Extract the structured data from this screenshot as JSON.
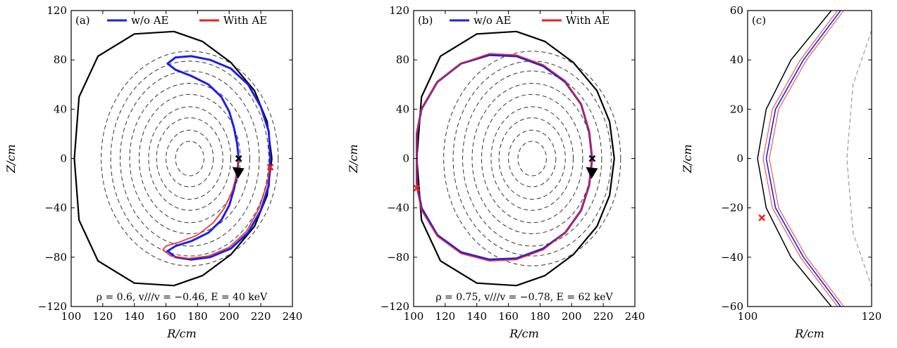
{
  "colors": {
    "without_ae": "#1f1fe6",
    "with_ae": "#ee2222",
    "boundary": "#000000",
    "flux_surface": "#333333",
    "flux_surface_c": "#999999"
  },
  "legend": {
    "entries": [
      "w/o AE",
      "With AE"
    ]
  },
  "chart_data": [
    {
      "panel": "(a)",
      "type": "line",
      "xlabel": "R/cm",
      "ylabel": "Z/cm",
      "xlim": [
        100,
        240
      ],
      "ylim": [
        -120,
        120
      ],
      "xticks": [
        "100",
        "120",
        "140",
        "160",
        "180",
        "200",
        "220",
        "240"
      ],
      "yticks": [
        "−120",
        "−80",
        "−40",
        "0",
        "40",
        "80",
        "120"
      ],
      "annotation": "ρ = 0.6,  v//∕v = −0.46,  E = 40 keV",
      "legend_position": "top",
      "start_point": {
        "R": 206,
        "Z": 0
      },
      "with_ae_end_marker": {
        "R": 226,
        "Z": -7
      },
      "series": [
        {
          "name": "w/o AE",
          "points": [
            [
              206,
              0
            ],
            [
              205,
              -12
            ],
            [
              203,
              -25
            ],
            [
              200,
              -38
            ],
            [
              195,
              -50
            ],
            [
              187,
              -60
            ],
            [
              176,
              -67
            ],
            [
              166,
              -71
            ],
            [
              161,
              -75
            ],
            [
              166,
              -80
            ],
            [
              176,
              -82
            ],
            [
              188,
              -80
            ],
            [
              201,
              -73
            ],
            [
              212,
              -60
            ],
            [
              220,
              -42
            ],
            [
              225,
              -22
            ],
            [
              226,
              0
            ],
            [
              225,
              22
            ],
            [
              220,
              42
            ],
            [
              212,
              60
            ],
            [
              201,
              73
            ],
            [
              188,
              80
            ],
            [
              176,
              83
            ],
            [
              166,
              82
            ],
            [
              161,
              77
            ],
            [
              166,
              72
            ],
            [
              176,
              67
            ],
            [
              187,
              60
            ],
            [
              195,
              50
            ],
            [
              200,
              38
            ],
            [
              203,
              25
            ],
            [
              205,
              12
            ],
            [
              206,
              0
            ]
          ]
        },
        {
          "name": "With AE",
          "points": [
            [
              206,
              0
            ],
            [
              205,
              -12
            ],
            [
              202,
              -26
            ],
            [
              197,
              -40
            ],
            [
              190,
              -52
            ],
            [
              180,
              -62
            ],
            [
              168,
              -68
            ],
            [
              160,
              -71
            ],
            [
              158,
              -74
            ],
            [
              163,
              -79
            ],
            [
              174,
              -81
            ],
            [
              187,
              -79
            ],
            [
              200,
              -72
            ],
            [
              211,
              -59
            ],
            [
              219,
              -40
            ],
            [
              224,
              -20
            ],
            [
              226,
              -7
            ]
          ]
        }
      ],
      "flux_surfaces": [
        {
          "R_center": 175,
          "Z_center": 0,
          "a": 9,
          "b": 14
        },
        {
          "R_center": 175,
          "Z_center": 0,
          "a": 15,
          "b": 23
        },
        {
          "R_center": 175,
          "Z_center": 0,
          "a": 21,
          "b": 33
        },
        {
          "R_center": 175,
          "Z_center": 0,
          "a": 26,
          "b": 42
        },
        {
          "R_center": 175,
          "Z_center": 0,
          "a": 32,
          "b": 52
        },
        {
          "R_center": 175,
          "Z_center": 0,
          "a": 38,
          "b": 61
        },
        {
          "R_center": 175,
          "Z_center": 0,
          "a": 44,
          "b": 71
        },
        {
          "R_center": 175,
          "Z_center": 0,
          "a": 50,
          "b": 79
        },
        {
          "R_center": 175,
          "Z_center": 0,
          "a": 56,
          "b": 87
        }
      ],
      "boundary": [
        [
          227,
          0
        ],
        [
          224,
          30
        ],
        [
          216,
          55
        ],
        [
          201,
          78
        ],
        [
          183,
          95
        ],
        [
          165,
          103
        ],
        [
          140,
          101
        ],
        [
          117,
          83
        ],
        [
          105,
          50
        ],
        [
          102,
          0
        ],
        [
          105,
          -50
        ],
        [
          117,
          -83
        ],
        [
          140,
          -101
        ],
        [
          165,
          -103
        ],
        [
          183,
          -95
        ],
        [
          201,
          -78
        ],
        [
          216,
          -55
        ],
        [
          224,
          -30
        ],
        [
          227,
          0
        ]
      ]
    },
    {
      "panel": "(b)",
      "type": "line",
      "xlabel": "R/cm",
      "ylabel": "Z/cm",
      "xlim": [
        100,
        240
      ],
      "ylim": [
        -120,
        120
      ],
      "xticks": [
        "100",
        "120",
        "140",
        "160",
        "180",
        "200",
        "220",
        "240"
      ],
      "yticks": [
        "−120",
        "−80",
        "−40",
        "0",
        "40",
        "80",
        "120"
      ],
      "annotation": "ρ = 0.75,  v//∕v = −0.78,  E = 62 keV",
      "legend_position": "top",
      "start_point": {
        "R": 213,
        "Z": 0
      },
      "with_ae_end_marker": {
        "R": 102,
        "Z": -24
      },
      "series": [
        {
          "name": "w/o AE",
          "points": [
            [
              213,
              0
            ],
            [
              211,
              -22
            ],
            [
              206,
              -42
            ],
            [
              196,
              -60
            ],
            [
              182,
              -73
            ],
            [
              165,
              -81
            ],
            [
              148,
              -82
            ],
            [
              130,
              -76
            ],
            [
              115,
              -62
            ],
            [
              105,
              -40
            ],
            [
              102,
              -20
            ],
            [
              102,
              0
            ],
            [
              102,
              20
            ],
            [
              105,
              40
            ],
            [
              115,
              62
            ],
            [
              130,
              77
            ],
            [
              148,
              84
            ],
            [
              165,
              83
            ],
            [
              182,
              75
            ],
            [
              196,
              62
            ],
            [
              206,
              44
            ],
            [
              211,
              22
            ],
            [
              213,
              0
            ]
          ]
        },
        {
          "name": "With AE",
          "points": [
            [
              213,
              0
            ],
            [
              211,
              -22
            ],
            [
              206,
              -42
            ],
            [
              196,
              -60
            ],
            [
              182,
              -74
            ],
            [
              165,
              -82
            ],
            [
              148,
              -83
            ],
            [
              130,
              -77
            ],
            [
              115,
              -63
            ],
            [
              105,
              -42
            ],
            [
              102,
              -24
            ],
            [
              102,
              0
            ],
            [
              102,
              20
            ],
            [
              105,
              40
            ],
            [
              115,
              62
            ],
            [
              130,
              77
            ],
            [
              148,
              85
            ],
            [
              165,
              84
            ],
            [
              182,
              76
            ],
            [
              196,
              63
            ],
            [
              206,
              44
            ],
            [
              211,
              22
            ],
            [
              213,
              2
            ]
          ]
        }
      ],
      "flux_surfaces": [
        {
          "R_center": 175,
          "Z_center": 0,
          "a": 9,
          "b": 14
        },
        {
          "R_center": 175,
          "Z_center": 0,
          "a": 15,
          "b": 23
        },
        {
          "R_center": 175,
          "Z_center": 0,
          "a": 21,
          "b": 33
        },
        {
          "R_center": 175,
          "Z_center": 0,
          "a": 26,
          "b": 42
        },
        {
          "R_center": 175,
          "Z_center": 0,
          "a": 32,
          "b": 52
        },
        {
          "R_center": 175,
          "Z_center": 0,
          "a": 38,
          "b": 61
        },
        {
          "R_center": 175,
          "Z_center": 0,
          "a": 44,
          "b": 71
        },
        {
          "R_center": 175,
          "Z_center": 0,
          "a": 50,
          "b": 79
        },
        {
          "R_center": 175,
          "Z_center": 0,
          "a": 56,
          "b": 87
        }
      ],
      "boundary": [
        [
          227,
          0
        ],
        [
          224,
          30
        ],
        [
          216,
          55
        ],
        [
          201,
          78
        ],
        [
          183,
          95
        ],
        [
          165,
          103
        ],
        [
          140,
          101
        ],
        [
          117,
          83
        ],
        [
          105,
          50
        ],
        [
          102,
          0
        ],
        [
          105,
          -50
        ],
        [
          117,
          -83
        ],
        [
          140,
          -101
        ],
        [
          165,
          -103
        ],
        [
          183,
          -95
        ],
        [
          201,
          -78
        ],
        [
          216,
          -55
        ],
        [
          224,
          -30
        ],
        [
          227,
          0
        ]
      ]
    },
    {
      "panel": "(c)",
      "type": "line",
      "xlabel": "R/cm",
      "ylabel": "Z/cm",
      "xlim": [
        100,
        120
      ],
      "ylim": [
        -60,
        60
      ],
      "xticks": [
        "100",
        "120"
      ],
      "yticks": [
        "−60",
        "−40",
        "−20",
        "0",
        "20",
        "40",
        "60"
      ],
      "with_ae_end_marker": {
        "R": 102.3,
        "Z": -24
      },
      "series": [
        {
          "name": "w/o AE",
          "points": [
            [
              115,
              60
            ],
            [
              109,
              40
            ],
            [
              104.5,
              20
            ],
            [
              103,
              0
            ],
            [
              104.5,
              -20
            ],
            [
              109,
              -40
            ],
            [
              115,
              -60
            ]
          ]
        },
        {
          "name": "With AE",
          "points": [
            [
              114.5,
              60
            ],
            [
              108.5,
              40
            ],
            [
              104,
              20
            ],
            [
              102.5,
              0
            ],
            [
              104,
              -20
            ],
            [
              108.5,
              -40
            ],
            [
              114.5,
              -60
            ]
          ]
        },
        {
          "name": "With AE",
          "points": [
            [
              115.5,
              60
            ],
            [
              109.5,
              40
            ],
            [
              105,
              20
            ],
            [
              103.5,
              0
            ],
            [
              105,
              -20
            ],
            [
              109.5,
              -40
            ],
            [
              115.5,
              -60
            ]
          ]
        }
      ],
      "boundary_segment": [
        [
          113.5,
          60
        ],
        [
          107,
          40
        ],
        [
          103,
          20
        ],
        [
          101.6,
          0
        ],
        [
          103,
          -20
        ],
        [
          107,
          -40
        ],
        [
          113.5,
          -60
        ]
      ],
      "flux_surface_segment": [
        [
          120,
          52
        ],
        [
          117,
          30
        ],
        [
          116,
          0
        ],
        [
          117,
          -30
        ],
        [
          120,
          -52
        ]
      ]
    }
  ]
}
